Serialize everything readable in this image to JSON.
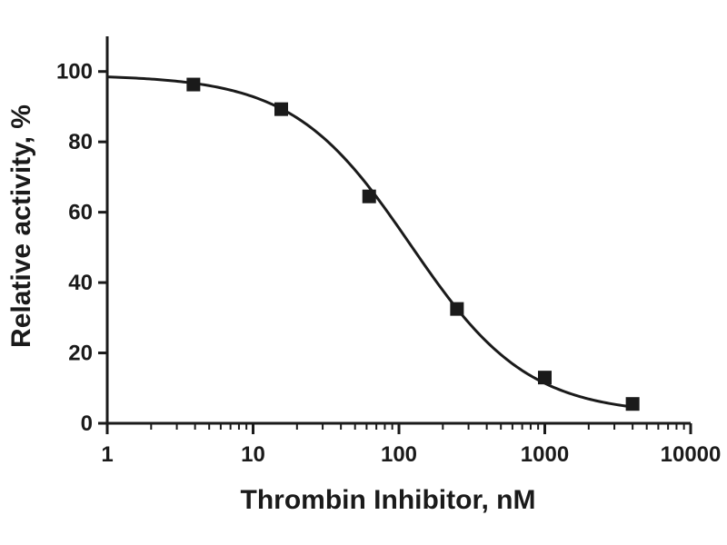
{
  "chart_data": {
    "type": "scatter",
    "title": "",
    "xlabel": "Thrombin Inhibitor, nM",
    "ylabel": "Relative activity, %",
    "xscale": "log",
    "xlim": [
      1,
      10000
    ],
    "ylim": [
      0,
      110
    ],
    "x_ticks": [
      "1",
      "10",
      "100",
      "1000",
      "10000"
    ],
    "y_ticks": [
      "0",
      "20",
      "40",
      "60",
      "80",
      "100"
    ],
    "grid": false,
    "legend": "none",
    "series": [
      {
        "points": [
          {
            "x": 3.9,
            "y": 96.3
          },
          {
            "x": 15.6,
            "y": 89.3
          },
          {
            "x": 62.5,
            "y": 64.5
          },
          {
            "x": 250,
            "y": 32.5
          },
          {
            "x": 1000,
            "y": 13.0
          },
          {
            "x": 4000,
            "y": 5.5
          }
        ]
      }
    ],
    "fit_curve": {
      "model": "four-parameter logistic",
      "top": 99,
      "bottom": 2.5,
      "ic50": 120,
      "hill": 1.08,
      "x_range": [
        1,
        4000
      ]
    }
  }
}
